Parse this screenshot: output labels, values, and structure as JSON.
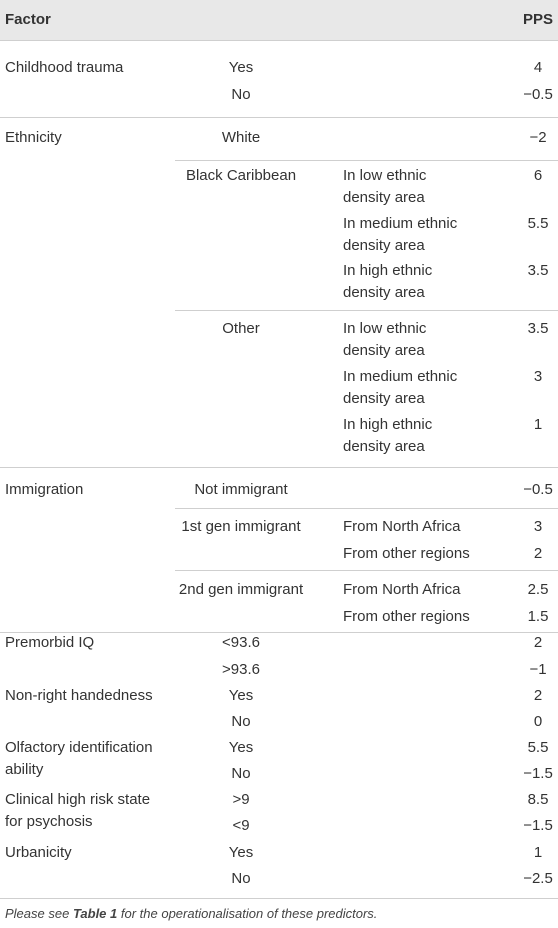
{
  "table": {
    "header": [
      "Factor",
      "PPS"
    ],
    "rows": [
      {
        "factor": "Childhood trauma",
        "level": "Yes",
        "pps": "4"
      },
      {
        "level": "No",
        "pps": "−0.5"
      },
      {
        "factor": "Ethnicity",
        "level": "White",
        "pps": "−2"
      },
      {
        "level": "Black Caribbean",
        "sublevel": [
          "In low ethnic",
          "density area"
        ],
        "pps": "6"
      },
      {
        "sublevel": [
          "In medium ethnic",
          "density area"
        ],
        "pps": "5.5"
      },
      {
        "sublevel": [
          "In high ethnic",
          "density area"
        ],
        "pps": "3.5"
      },
      {
        "level": "Other",
        "sublevel": [
          "In low ethnic",
          "density area"
        ],
        "pps": "3.5"
      },
      {
        "sublevel": [
          "In medium ethnic",
          "density area"
        ],
        "pps": "3"
      },
      {
        "sublevel": [
          "In high ethnic",
          "density area"
        ],
        "pps": "1"
      },
      {
        "factor": "Immigration",
        "level": "Not immigrant",
        "pps": "−0.5"
      },
      {
        "level": "1st gen immigrant",
        "sublevel": "From North Africa",
        "pps": "3"
      },
      {
        "sublevel": "From other regions",
        "pps": "2"
      },
      {
        "level": "2nd gen immigrant",
        "sublevel": "From North Africa",
        "pps": "2.5"
      },
      {
        "sublevel": "From other regions",
        "pps": "1.5"
      },
      {
        "factor": "Premorbid IQ",
        "level": "<93.6",
        "pps": "2"
      },
      {
        "level": ">93.6",
        "pps": "−1"
      },
      {
        "factor": "Non-right handedness",
        "level": "Yes",
        "pps": "2"
      },
      {
        "level": "No",
        "pps": "0"
      },
      {
        "factor": [
          "Olfactory identification",
          "ability"
        ],
        "level": "Yes",
        "pps": "5.5"
      },
      {
        "level": "No",
        "pps": "−1.5"
      },
      {
        "factor": [
          "Clinical high risk state",
          "for psychosis"
        ],
        "level": ">9",
        "pps": "8.5"
      },
      {
        "level": "<9",
        "pps": "−1.5"
      },
      {
        "factor": "Urbanicity",
        "level": "Yes",
        "pps": "1"
      },
      {
        "level": "No",
        "pps": "−2.5"
      }
    ]
  },
  "footnote": {
    "before": "Please see ",
    "link": "Table 1",
    "after": " for the operationalisation of these predictors."
  }
}
